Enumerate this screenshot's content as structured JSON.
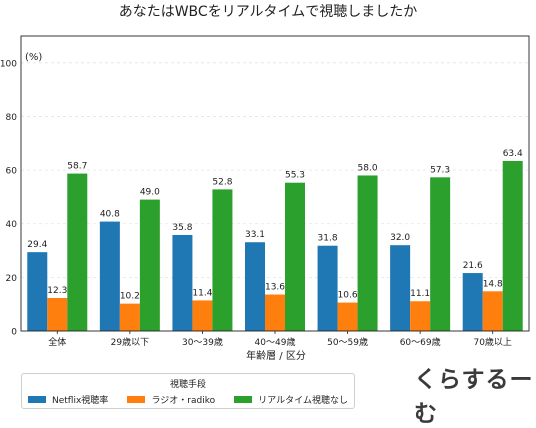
{
  "chart_data": {
    "type": "bar",
    "title": "あなたはWBCをリアルタイムで視聴しましたか",
    "unit_label": "(%)",
    "xlabel": "年齢層 / 区分",
    "ylabel": "",
    "ylim": [
      0,
      110
    ],
    "yticks": [
      0,
      20,
      40,
      60,
      80,
      100
    ],
    "grid": true,
    "legend_title": "視聴手段",
    "legend_position": "bottom",
    "categories": [
      "全体",
      "29歳以下",
      "30〜39歳",
      "40〜49歳",
      "50〜59歳",
      "60〜69歳",
      "70歳以上"
    ],
    "series": [
      {
        "name": "Netflix視聴率",
        "color": "#1f77b4",
        "values": [
          29.4,
          40.8,
          35.8,
          33.1,
          31.8,
          32.0,
          21.6
        ]
      },
      {
        "name": "ラジオ・radiko",
        "color": "#ff7f0e",
        "values": [
          12.3,
          10.2,
          11.4,
          13.6,
          10.6,
          11.1,
          14.8
        ]
      },
      {
        "name": "リアルタイム視聴なし",
        "color": "#2ca02c",
        "values": [
          58.7,
          49.0,
          52.8,
          55.3,
          58.0,
          57.3,
          63.4
        ]
      }
    ]
  },
  "logo": {
    "text": "くらするーむ"
  }
}
